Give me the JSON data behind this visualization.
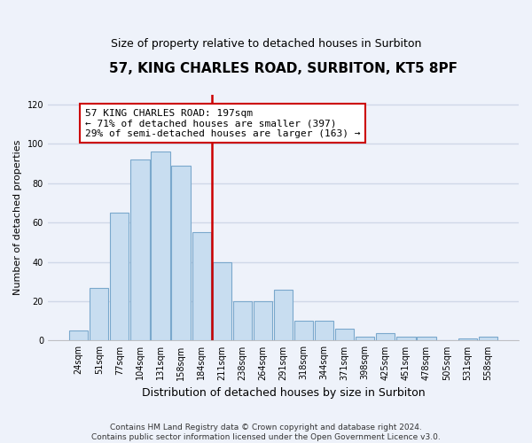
{
  "title": "57, KING CHARLES ROAD, SURBITON, KT5 8PF",
  "subtitle": "Size of property relative to detached houses in Surbiton",
  "xlabel": "Distribution of detached houses by size in Surbiton",
  "ylabel": "Number of detached properties",
  "categories": [
    "24sqm",
    "51sqm",
    "77sqm",
    "104sqm",
    "131sqm",
    "158sqm",
    "184sqm",
    "211sqm",
    "238sqm",
    "264sqm",
    "291sqm",
    "318sqm",
    "344sqm",
    "371sqm",
    "398sqm",
    "425sqm",
    "451sqm",
    "478sqm",
    "505sqm",
    "531sqm",
    "558sqm"
  ],
  "values": [
    5,
    27,
    65,
    92,
    96,
    89,
    55,
    40,
    20,
    20,
    26,
    10,
    10,
    6,
    2,
    4,
    2,
    2,
    0,
    1,
    2
  ],
  "bar_color": "#c8ddf0",
  "bar_edge_color": "#7aa8cc",
  "vline_color": "#cc0000",
  "annotation_line1": "57 KING CHARLES ROAD: 197sqm",
  "annotation_line2": "← 71% of detached houses are smaller (397)",
  "annotation_line3": "29% of semi-detached houses are larger (163) →",
  "annotation_box_color": "#ffffff",
  "annotation_box_edge_color": "#cc0000",
  "ylim": [
    0,
    125
  ],
  "yticks": [
    0,
    20,
    40,
    60,
    80,
    100,
    120
  ],
  "footer_line1": "Contains HM Land Registry data © Crown copyright and database right 2024.",
  "footer_line2": "Contains public sector information licensed under the Open Government Licence v3.0.",
  "background_color": "#eef2fa",
  "grid_color": "#d0d8e8",
  "title_fontsize": 11,
  "subtitle_fontsize": 9,
  "xlabel_fontsize": 9,
  "ylabel_fontsize": 8,
  "tick_fontsize": 7,
  "annotation_fontsize": 8,
  "footer_fontsize": 6.5
}
